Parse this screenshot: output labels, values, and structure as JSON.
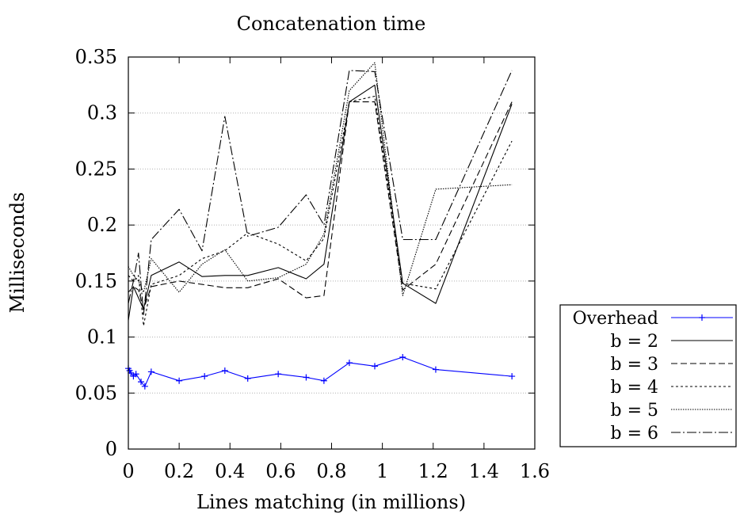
{
  "chart_data": {
    "type": "line",
    "title": "Concatenation time",
    "xlabel": "Lines matching (in millions)",
    "ylabel": "Milliseconds",
    "xlim": [
      0,
      1.6
    ],
    "ylim": [
      0,
      0.35
    ],
    "x_ticks": [
      "0",
      "0.2",
      "0.4",
      "0.6",
      "0.8",
      "1",
      "1.2",
      "1.4",
      "1.6"
    ],
    "y_ticks": [
      "0",
      "0.05",
      "0.1",
      "0.15",
      "0.2",
      "0.25",
      "0.3",
      "0.35"
    ],
    "grid": "horizontal dotted",
    "legend_position": "outside right, bottom",
    "series": [
      {
        "name": "Overhead",
        "color": "#0000ff",
        "dash": "",
        "marker": "plus",
        "x": [
          0.0,
          0.005,
          0.01,
          0.02,
          0.03,
          0.05,
          0.065,
          0.09,
          0.2,
          0.3,
          0.38,
          0.47,
          0.59,
          0.7,
          0.77,
          0.87,
          0.97,
          1.08,
          1.21,
          1.51
        ],
        "values": [
          0.072,
          0.07,
          0.068,
          0.065,
          0.067,
          0.06,
          0.056,
          0.069,
          0.061,
          0.065,
          0.07,
          0.063,
          0.067,
          0.064,
          0.061,
          0.077,
          0.074,
          0.082,
          0.071,
          0.065
        ]
      },
      {
        "name": "b = 2",
        "color": "#000000",
        "dash": "",
        "marker": "none",
        "x": [
          0.0,
          0.02,
          0.04,
          0.06,
          0.09,
          0.2,
          0.29,
          0.38,
          0.47,
          0.59,
          0.7,
          0.77,
          0.87,
          0.97,
          1.08,
          1.21,
          1.51
        ],
        "values": [
          0.115,
          0.145,
          0.135,
          0.125,
          0.155,
          0.167,
          0.154,
          0.155,
          0.155,
          0.162,
          0.152,
          0.165,
          0.31,
          0.325,
          0.148,
          0.13,
          0.308
        ]
      },
      {
        "name": "b = 3",
        "color": "#000000",
        "dash": "8,4",
        "marker": "none",
        "x": [
          0.0,
          0.02,
          0.04,
          0.06,
          0.09,
          0.2,
          0.29,
          0.38,
          0.47,
          0.59,
          0.7,
          0.77,
          0.87,
          0.97,
          1.08,
          1.21,
          1.51
        ],
        "values": [
          0.14,
          0.145,
          0.142,
          0.125,
          0.145,
          0.15,
          0.147,
          0.144,
          0.144,
          0.152,
          0.135,
          0.137,
          0.31,
          0.31,
          0.142,
          0.165,
          0.31
        ]
      },
      {
        "name": "b = 4",
        "color": "#000000",
        "dash": "3,3",
        "marker": "none",
        "x": [
          0.0,
          0.02,
          0.04,
          0.06,
          0.09,
          0.2,
          0.29,
          0.38,
          0.47,
          0.59,
          0.7,
          0.77,
          0.87,
          0.97,
          1.08,
          1.21,
          1.51
        ],
        "values": [
          0.155,
          0.15,
          0.155,
          0.11,
          0.147,
          0.155,
          0.17,
          0.177,
          0.193,
          0.183,
          0.168,
          0.188,
          0.31,
          0.315,
          0.148,
          0.143,
          0.275
        ]
      },
      {
        "name": "b = 5",
        "color": "#000000",
        "dash": "1.5,1.5",
        "marker": "none",
        "x": [
          0.0,
          0.02,
          0.04,
          0.06,
          0.09,
          0.2,
          0.29,
          0.38,
          0.47,
          0.59,
          0.7,
          0.77,
          0.87,
          0.97,
          1.08,
          1.21,
          1.51
        ],
        "values": [
          0.163,
          0.155,
          0.15,
          0.14,
          0.17,
          0.14,
          0.165,
          0.178,
          0.15,
          0.153,
          0.165,
          0.192,
          0.32,
          0.345,
          0.137,
          0.232,
          0.236
        ]
      },
      {
        "name": "b = 6",
        "color": "#000000",
        "dash": "12,3,2,3",
        "marker": "none",
        "x": [
          0.0,
          0.02,
          0.04,
          0.06,
          0.09,
          0.2,
          0.29,
          0.38,
          0.47,
          0.59,
          0.7,
          0.77,
          0.87,
          0.97,
          1.08,
          1.21,
          1.51
        ],
        "values": [
          0.13,
          0.15,
          0.175,
          0.12,
          0.187,
          0.214,
          0.177,
          0.297,
          0.19,
          0.198,
          0.227,
          0.2,
          0.338,
          0.337,
          0.187,
          0.187,
          0.338
        ]
      }
    ]
  }
}
